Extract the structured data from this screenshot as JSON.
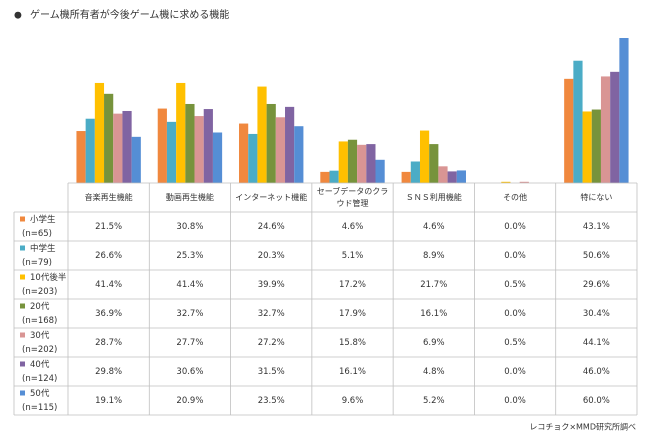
{
  "chart_data": {
    "type": "bar",
    "title": "ゲーム機所有者が今後ゲーム機に求める機能",
    "title_marker": "●",
    "source": "レコチョク×MMD研究所調べ",
    "categories": [
      "音楽再生機能",
      "動画再生機能",
      "インターネット機能",
      "セーブデータのクラウド管理",
      "ＳＮＳ利用機能",
      "その他",
      "特にない"
    ],
    "ylim": [
      0,
      60
    ],
    "series": [
      {
        "name": "小学生",
        "sample": "(n=65)",
        "color": "#f0883e",
        "values": [
          21.5,
          30.8,
          24.6,
          4.6,
          4.6,
          0.0,
          43.1
        ],
        "value_labels": [
          "21.5%",
          "30.8%",
          "24.6%",
          "4.6%",
          "4.6%",
          "0.0%",
          "43.1%"
        ]
      },
      {
        "name": "中学生",
        "sample": "(n=79)",
        "color": "#4bacc6",
        "values": [
          26.6,
          25.3,
          20.3,
          5.1,
          8.9,
          0.0,
          50.6
        ],
        "value_labels": [
          "26.6%",
          "25.3%",
          "20.3%",
          "5.1%",
          "8.9%",
          "0.0%",
          "50.6%"
        ]
      },
      {
        "name": "10代後半",
        "sample": "(n=203)",
        "color": "#ffc000",
        "values": [
          41.4,
          41.4,
          39.9,
          17.2,
          21.7,
          0.5,
          29.6
        ],
        "value_labels": [
          "41.4%",
          "41.4%",
          "39.9%",
          "17.2%",
          "21.7%",
          "0.5%",
          "29.6%"
        ]
      },
      {
        "name": "20代",
        "sample": "(n=168)",
        "color": "#77933c",
        "values": [
          36.9,
          32.7,
          32.7,
          17.9,
          16.1,
          0.0,
          30.4
        ],
        "value_labels": [
          "36.9%",
          "32.7%",
          "32.7%",
          "17.9%",
          "16.1%",
          "0.0%",
          "30.4%"
        ]
      },
      {
        "name": "30代",
        "sample": "(n=202)",
        "color": "#d99594",
        "values": [
          28.7,
          27.7,
          27.2,
          15.8,
          6.9,
          0.5,
          44.1
        ],
        "value_labels": [
          "28.7%",
          "27.7%",
          "27.2%",
          "15.8%",
          "6.9%",
          "0.5%",
          "44.1%"
        ]
      },
      {
        "name": "40代",
        "sample": "(n=124)",
        "color": "#8064a2",
        "values": [
          29.8,
          30.6,
          31.5,
          16.1,
          4.8,
          0.0,
          46.0
        ],
        "value_labels": [
          "29.8%",
          "30.6%",
          "31.5%",
          "16.1%",
          "4.8%",
          "0.0%",
          "46.0%"
        ]
      },
      {
        "name": "50代",
        "sample": "(n=115)",
        "color": "#558ed5",
        "values": [
          19.1,
          20.9,
          23.5,
          9.6,
          5.2,
          0.0,
          60.0
        ],
        "value_labels": [
          "19.1%",
          "20.9%",
          "23.5%",
          "9.6%",
          "5.2%",
          "0.0%",
          "60.0%"
        ]
      }
    ]
  }
}
